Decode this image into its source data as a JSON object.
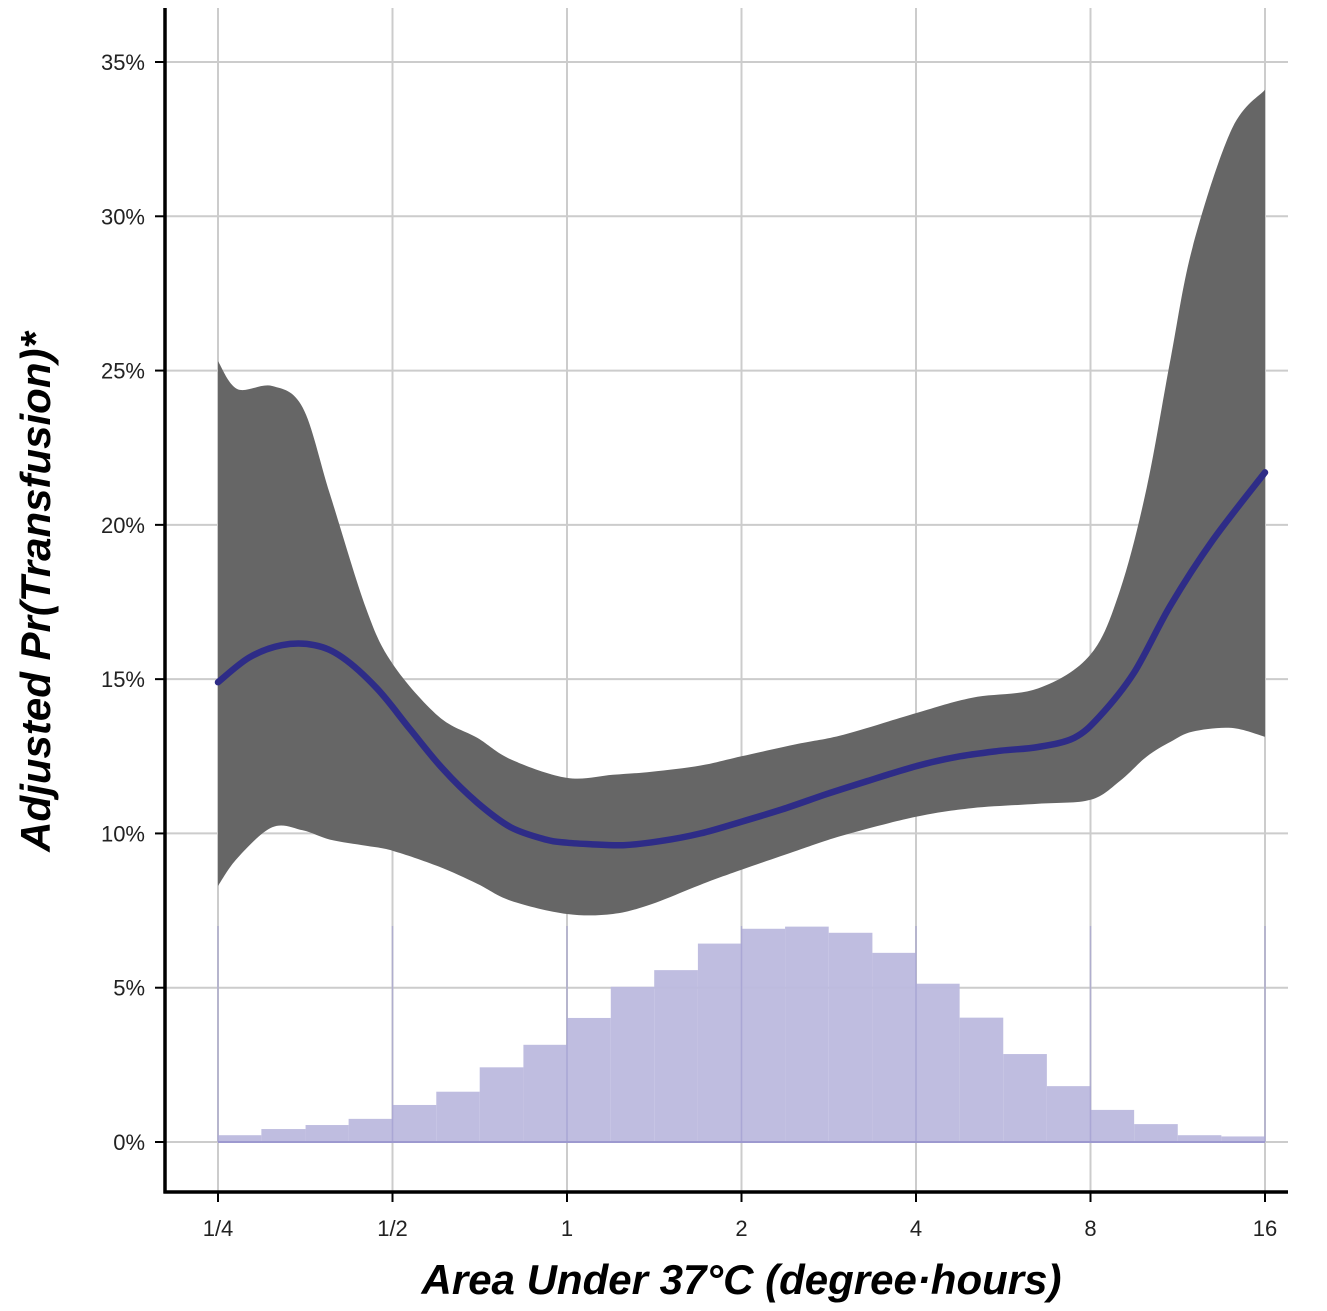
{
  "chart_data": {
    "type": "line",
    "xlabel": "Area Under 37°C (degree·hours)",
    "ylabel": "Adjusted Pr(Transfusion)*",
    "x_scale": "log2",
    "xlim": [
      0.25,
      16
    ],
    "ylim": [
      -0.018,
      0.36
    ],
    "x_ticks": [
      {
        "value": 0.25,
        "label": "1/4"
      },
      {
        "value": 0.5,
        "label": "1/2"
      },
      {
        "value": 1,
        "label": "1"
      },
      {
        "value": 2,
        "label": "2"
      },
      {
        "value": 4,
        "label": "4"
      },
      {
        "value": 8,
        "label": "8"
      },
      {
        "value": 16,
        "label": "16"
      }
    ],
    "y_ticks": [
      {
        "value": 0.0,
        "label": "0%"
      },
      {
        "value": 0.05,
        "label": "5%"
      },
      {
        "value": 0.1,
        "label": "10%"
      },
      {
        "value": 0.15,
        "label": "15%"
      },
      {
        "value": 0.2,
        "label": "20%"
      },
      {
        "value": 0.25,
        "label": "25%"
      },
      {
        "value": 0.3,
        "label": "30%"
      },
      {
        "value": 0.35,
        "label": "35%"
      }
    ],
    "grid": true,
    "colors": {
      "line": "#2e2c87",
      "band": "#666666",
      "histogram": "#bcb9de",
      "histogram_edge": "#9d99cf"
    },
    "series": [
      {
        "kind": "line",
        "x": [
          0.25,
          0.283,
          0.322,
          0.367,
          0.41,
          0.47,
          0.535,
          0.61,
          0.7,
          0.8,
          0.92,
          1.0,
          1.1,
          1.25,
          1.45,
          1.7,
          2.0,
          2.35,
          2.8,
          3.3,
          4.0,
          4.7,
          5.6,
          6.5,
          7.5,
          8.3,
          9.5,
          11.0,
          13.0,
          16.0
        ],
        "y": [
          0.149,
          0.157,
          0.161,
          0.161,
          0.157,
          0.147,
          0.134,
          0.121,
          0.11,
          0.102,
          0.098,
          0.097,
          0.0965,
          0.0962,
          0.0975,
          0.1,
          0.1038,
          0.1078,
          0.1127,
          0.117,
          0.1218,
          0.1248,
          0.1268,
          0.128,
          0.131,
          0.138,
          0.152,
          0.174,
          0.195,
          0.217
        ]
      },
      {
        "kind": "band",
        "x": [
          0.25,
          0.27,
          0.31,
          0.35,
          0.39,
          0.45,
          0.5,
          0.6,
          0.7,
          0.8,
          1.0,
          1.2,
          1.4,
          1.7,
          2.0,
          2.5,
          3.0,
          4.0,
          5.0,
          6.5,
          8.0,
          9.0,
          10.0,
          11.0,
          12.0,
          14.0,
          16.0
        ],
        "lower": [
          0.083,
          0.092,
          0.102,
          0.101,
          0.098,
          0.096,
          0.0944,
          0.0893,
          0.0837,
          0.0782,
          0.0739,
          0.0739,
          0.0771,
          0.0834,
          0.0882,
          0.0945,
          0.0994,
          0.1054,
          0.1082,
          0.1096,
          0.1109,
          0.1171,
          0.1249,
          0.1297,
          0.133,
          0.1342,
          0.1313
        ],
        "upper": [
          0.253,
          0.244,
          0.245,
          0.238,
          0.21,
          0.173,
          0.155,
          0.138,
          0.131,
          0.124,
          0.118,
          0.119,
          0.12,
          0.122,
          0.125,
          0.129,
          0.132,
          0.139,
          0.144,
          0.147,
          0.158,
          0.179,
          0.212,
          0.254,
          0.29,
          0.328,
          0.341
        ]
      },
      {
        "kind": "histogram",
        "bin_edges": [
          0.25,
          0.297,
          0.354,
          0.42,
          0.5,
          0.595,
          0.707,
          0.841,
          1.0,
          1.19,
          1.414,
          1.682,
          2.0,
          2.378,
          2.828,
          3.364,
          4.0,
          4.757,
          5.657,
          6.727,
          8.0,
          9.514,
          11.314,
          13.454,
          16.0
        ],
        "heights": [
          0.0022,
          0.0042,
          0.0055,
          0.0075,
          0.012,
          0.0163,
          0.0242,
          0.0315,
          0.0402,
          0.0503,
          0.0557,
          0.0643,
          0.0691,
          0.0698,
          0.0678,
          0.0613,
          0.0513,
          0.0403,
          0.0285,
          0.0181,
          0.0104,
          0.0058,
          0.0022,
          0.0018
        ]
      }
    ]
  }
}
